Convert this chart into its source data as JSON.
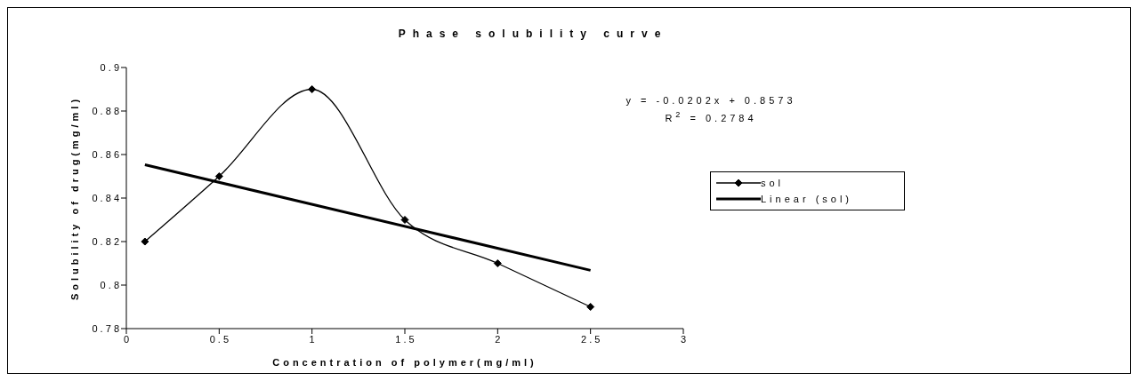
{
  "chart_data": {
    "type": "line",
    "title": "Phase solubility curve",
    "xlabel": "Concentration of polymer(mg/ml)",
    "ylabel": "Solubility of drug(mg/ml)",
    "x": [
      0.1,
      0.5,
      1,
      1.5,
      2,
      2.5
    ],
    "series": [
      {
        "name": "sol",
        "color": "#000000",
        "values": [
          0.82,
          0.85,
          0.89,
          0.83,
          0.81,
          0.79
        ],
        "marker": "diamond"
      },
      {
        "name": "Linear (sol)",
        "color": "#000000",
        "x": [
          0.1,
          2.5
        ],
        "values": [
          0.8553,
          0.8068
        ],
        "marker": "none"
      }
    ],
    "xlim": [
      0,
      3
    ],
    "xticks": [
      0,
      0.5,
      1,
      1.5,
      2,
      2.5,
      3
    ],
    "ylim": [
      0.78,
      0.9
    ],
    "yticks": [
      0.78,
      0.8,
      0.82,
      0.84,
      0.86,
      0.88,
      0.9
    ],
    "annotations": [
      "y = -0.0202x + 0.8573",
      "R$^{2}$ = 0.2784"
    ],
    "legend": "right",
    "grid": false
  }
}
